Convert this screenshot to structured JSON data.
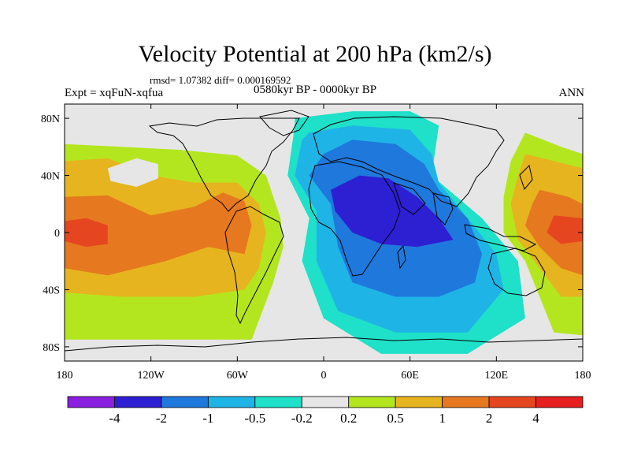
{
  "header": {
    "title": "Velocity Potential at 200 hPa (km2/s)",
    "stats": "rmsd= 1.07382 diff= 0.000169592",
    "experiment": "Expt = xqFuN-xqfua",
    "period": "0580kyr BP - 0000kyr BP",
    "season": "ANN"
  },
  "axes": {
    "lat_labels": [
      "80N",
      "40N",
      "0",
      "40S",
      "80S"
    ],
    "lat_values": [
      80,
      40,
      0,
      -40,
      -80
    ],
    "lon_labels": [
      "180",
      "120W",
      "60W",
      "0",
      "60E",
      "120E",
      "180"
    ],
    "lon_values": [
      -180,
      -120,
      -60,
      0,
      60,
      120,
      180
    ]
  },
  "colorbar": {
    "labels": [
      "-4",
      "-2",
      "-1",
      "-0.5",
      "-0.2",
      "0.2",
      "0.5",
      "1",
      "2",
      "4"
    ],
    "colors": [
      "#8b1fe0",
      "#2d1fd2",
      "#1f78dc",
      "#1fb4e6",
      "#1fe0c8",
      "#e6e6e6",
      "#b4e61f",
      "#e6b41f",
      "#e6781f",
      "#e6461f",
      "#e61f1f"
    ]
  },
  "chart_data": {
    "type": "heatmap",
    "title": "Velocity Potential at 200 hPa (km2/s)",
    "units": "km2/s",
    "xlim": [
      -180,
      180
    ],
    "ylim": [
      -90,
      90
    ],
    "levels": [
      -4,
      -2,
      -1,
      -0.5,
      -0.2,
      0.2,
      0.5,
      1,
      2,
      4
    ],
    "regions": [
      {
        "name": "central-pacific-positive",
        "level_color": "#e6e6e6",
        "points": [
          [
            -180,
            65
          ],
          [
            -150,
            60
          ],
          [
            -110,
            62
          ],
          [
            -70,
            58
          ],
          [
            -50,
            40
          ],
          [
            -40,
            10
          ],
          [
            -30,
            -10
          ],
          [
            -40,
            -35
          ],
          [
            -45,
            -75
          ],
          [
            -80,
            -70
          ],
          [
            -130,
            -70
          ],
          [
            -180,
            -70
          ]
        ]
      },
      {
        "name": "pacific-band-0.5",
        "level_color": "#b4e61f",
        "points": [
          [
            -180,
            62
          ],
          [
            -140,
            60
          ],
          [
            -100,
            58
          ],
          [
            -60,
            54
          ],
          [
            -40,
            40
          ],
          [
            -30,
            10
          ],
          [
            -28,
            -10
          ],
          [
            -35,
            -35
          ],
          [
            -50,
            -75
          ],
          [
            -110,
            -75
          ],
          [
            -180,
            -75
          ]
        ]
      },
      {
        "name": "pacific-band-1",
        "level_color": "#e6b41f",
        "points": [
          [
            -180,
            50
          ],
          [
            -150,
            52
          ],
          [
            -120,
            40
          ],
          [
            -90,
            35
          ],
          [
            -60,
            35
          ],
          [
            -45,
            20
          ],
          [
            -40,
            0
          ],
          [
            -45,
            -25
          ],
          [
            -55,
            -40
          ],
          [
            -90,
            -45
          ],
          [
            -140,
            -45
          ],
          [
            -180,
            -42
          ]
        ]
      },
      {
        "name": "pacific-band-2",
        "level_color": "#e6781f",
        "points": [
          [
            -180,
            25
          ],
          [
            -150,
            26
          ],
          [
            -120,
            12
          ],
          [
            -90,
            18
          ],
          [
            -70,
            28
          ],
          [
            -55,
            22
          ],
          [
            -50,
            5
          ],
          [
            -55,
            -15
          ],
          [
            -80,
            -10
          ],
          [
            -110,
            -20
          ],
          [
            -150,
            -30
          ],
          [
            -180,
            -25
          ]
        ]
      },
      {
        "name": "pacific-band-4",
        "level_color": "#e6461f",
        "points": [
          [
            -180,
            8
          ],
          [
            -165,
            10
          ],
          [
            -150,
            5
          ],
          [
            -150,
            -8
          ],
          [
            -165,
            -10
          ],
          [
            -180,
            -6
          ]
        ]
      },
      {
        "name": "north-pacific-hole",
        "level_color": "#e6e6e6",
        "points": [
          [
            -150,
            45
          ],
          [
            -130,
            52
          ],
          [
            -115,
            48
          ],
          [
            -115,
            38
          ],
          [
            -130,
            32
          ],
          [
            -148,
            36
          ]
        ]
      },
      {
        "name": "africa-band--0.2",
        "level_color": "#1fe0c8",
        "points": [
          [
            -20,
            80
          ],
          [
            20,
            85
          ],
          [
            60,
            85
          ],
          [
            80,
            75
          ],
          [
            75,
            40
          ],
          [
            110,
            10
          ],
          [
            135,
            -20
          ],
          [
            140,
            -60
          ],
          [
            100,
            -85
          ],
          [
            40,
            -85
          ],
          [
            0,
            -60
          ],
          [
            -15,
            -20
          ],
          [
            -10,
            10
          ],
          [
            -25,
            40
          ],
          [
            -20,
            75
          ]
        ]
      },
      {
        "name": "africa-band--0.5",
        "level_color": "#1fb4e6",
        "points": [
          [
            -10,
            70
          ],
          [
            20,
            75
          ],
          [
            60,
            72
          ],
          [
            75,
            55
          ],
          [
            80,
            35
          ],
          [
            100,
            10
          ],
          [
            120,
            -15
          ],
          [
            125,
            -40
          ],
          [
            100,
            -70
          ],
          [
            50,
            -70
          ],
          [
            10,
            -55
          ],
          [
            -5,
            -20
          ],
          [
            -5,
            15
          ],
          [
            -20,
            40
          ],
          [
            -15,
            65
          ]
        ]
      },
      {
        "name": "africa-band--1",
        "level_color": "#1f78dc",
        "points": [
          [
            0,
            55
          ],
          [
            20,
            65
          ],
          [
            50,
            62
          ],
          [
            70,
            48
          ],
          [
            80,
            30
          ],
          [
            100,
            10
          ],
          [
            110,
            -15
          ],
          [
            105,
            -35
          ],
          [
            80,
            -45
          ],
          [
            50,
            -45
          ],
          [
            20,
            -35
          ],
          [
            10,
            -10
          ],
          [
            5,
            20
          ],
          [
            -10,
            40
          ]
        ]
      },
      {
        "name": "africa-band--2",
        "level_color": "#2d1fd2",
        "points": [
          [
            5,
            30
          ],
          [
            25,
            40
          ],
          [
            45,
            38
          ],
          [
            65,
            25
          ],
          [
            80,
            10
          ],
          [
            90,
            -5
          ],
          [
            65,
            -10
          ],
          [
            40,
            -8
          ],
          [
            20,
            0
          ],
          [
            8,
            15
          ]
        ]
      },
      {
        "name": "west-pacific-band-0.2",
        "level_color": "#b4e61f",
        "points": [
          [
            140,
            70
          ],
          [
            165,
            60
          ],
          [
            180,
            55
          ],
          [
            180,
            -72
          ],
          [
            160,
            -70
          ],
          [
            150,
            -45
          ],
          [
            140,
            -20
          ],
          [
            125,
            0
          ],
          [
            125,
            25
          ],
          [
            130,
            50
          ]
        ]
      },
      {
        "name": "west-pacific-band-1",
        "level_color": "#e6b41f",
        "points": [
          [
            140,
            55
          ],
          [
            160,
            50
          ],
          [
            180,
            45
          ],
          [
            180,
            -45
          ],
          [
            165,
            -45
          ],
          [
            150,
            -25
          ],
          [
            135,
            -5
          ],
          [
            130,
            20
          ],
          [
            135,
            40
          ]
        ]
      },
      {
        "name": "west-pacific-band-2",
        "level_color": "#e6781f",
        "points": [
          [
            150,
            30
          ],
          [
            170,
            25
          ],
          [
            180,
            20
          ],
          [
            180,
            -30
          ],
          [
            165,
            -25
          ],
          [
            150,
            -10
          ],
          [
            140,
            5
          ],
          [
            145,
            20
          ]
        ]
      },
      {
        "name": "west-pacific-band-4",
        "level_color": "#e6461f",
        "points": [
          [
            160,
            12
          ],
          [
            180,
            10
          ],
          [
            180,
            -6
          ],
          [
            165,
            -8
          ],
          [
            155,
            0
          ]
        ]
      }
    ]
  }
}
